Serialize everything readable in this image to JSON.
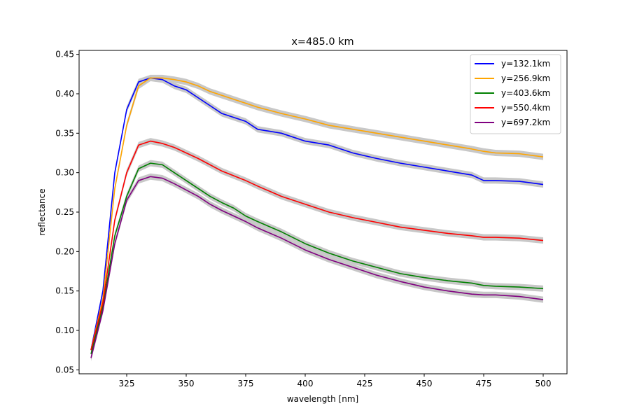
{
  "chart_data": {
    "type": "line",
    "title": "x=485.0 km",
    "xlabel": "wavelength [nm]",
    "ylabel": "reflectance",
    "xlim": [
      305,
      510
    ],
    "ylim": [
      0.045,
      0.455
    ],
    "xticks": [
      325,
      350,
      375,
      400,
      425,
      450,
      475,
      500
    ],
    "xtick_labels": [
      "325",
      "350",
      "375",
      "400",
      "425",
      "450",
      "475",
      "500"
    ],
    "yticks": [
      0.05,
      0.1,
      0.15,
      0.2,
      0.25,
      0.3,
      0.35,
      0.4,
      0.45
    ],
    "ytick_labels": [
      "0.05",
      "0.10",
      "0.15",
      "0.20",
      "0.25",
      "0.30",
      "0.35",
      "0.40",
      "0.45"
    ],
    "grid": false,
    "legend_position": "top-right",
    "uncertainty_band_color": "#c8c8c8",
    "series": [
      {
        "name": "y=132.1km",
        "color": "#0000ff",
        "x": [
          310,
          315,
          320,
          325,
          330,
          335,
          340,
          345,
          350,
          355,
          360,
          365,
          370,
          375,
          380,
          390,
          400,
          410,
          420,
          430,
          440,
          450,
          460,
          470,
          475,
          480,
          490,
          500
        ],
        "y": [
          0.075,
          0.15,
          0.3,
          0.38,
          0.415,
          0.42,
          0.418,
          0.41,
          0.405,
          0.395,
          0.385,
          0.375,
          0.37,
          0.365,
          0.355,
          0.35,
          0.34,
          0.335,
          0.325,
          0.318,
          0.312,
          0.307,
          0.302,
          0.297,
          0.29,
          0.29,
          0.289,
          0.285
        ]
      },
      {
        "name": "y=256.9km",
        "color": "#ffa500",
        "x": [
          310,
          315,
          320,
          325,
          330,
          335,
          340,
          345,
          350,
          355,
          360,
          365,
          370,
          375,
          380,
          390,
          400,
          410,
          420,
          430,
          440,
          450,
          460,
          470,
          475,
          480,
          490,
          500
        ],
        "y": [
          0.075,
          0.14,
          0.28,
          0.36,
          0.41,
          0.42,
          0.42,
          0.418,
          0.415,
          0.41,
          0.403,
          0.398,
          0.393,
          0.388,
          0.383,
          0.375,
          0.368,
          0.36,
          0.355,
          0.35,
          0.345,
          0.34,
          0.335,
          0.33,
          0.327,
          0.325,
          0.324,
          0.32
        ]
      },
      {
        "name": "y=403.6km",
        "color": "#008000",
        "x": [
          310,
          315,
          320,
          325,
          330,
          335,
          340,
          345,
          350,
          355,
          360,
          365,
          370,
          375,
          380,
          390,
          400,
          410,
          420,
          430,
          440,
          450,
          460,
          470,
          475,
          480,
          490,
          500
        ],
        "y": [
          0.07,
          0.13,
          0.22,
          0.27,
          0.305,
          0.312,
          0.31,
          0.3,
          0.29,
          0.28,
          0.27,
          0.262,
          0.255,
          0.245,
          0.238,
          0.225,
          0.21,
          0.198,
          0.188,
          0.18,
          0.172,
          0.167,
          0.163,
          0.16,
          0.157,
          0.156,
          0.155,
          0.153
        ]
      },
      {
        "name": "y=550.4km",
        "color": "#ff0000",
        "x": [
          310,
          315,
          320,
          325,
          330,
          335,
          340,
          345,
          350,
          355,
          360,
          365,
          370,
          375,
          380,
          390,
          400,
          410,
          420,
          430,
          440,
          450,
          460,
          470,
          475,
          480,
          490,
          500
        ],
        "y": [
          0.075,
          0.135,
          0.24,
          0.3,
          0.335,
          0.34,
          0.337,
          0.332,
          0.325,
          0.318,
          0.31,
          0.302,
          0.296,
          0.29,
          0.283,
          0.27,
          0.26,
          0.25,
          0.243,
          0.237,
          0.231,
          0.227,
          0.223,
          0.22,
          0.218,
          0.218,
          0.217,
          0.214
        ]
      },
      {
        "name": "y=697.2km",
        "color": "#800080",
        "x": [
          310,
          315,
          320,
          325,
          330,
          335,
          340,
          345,
          350,
          355,
          360,
          365,
          370,
          375,
          380,
          390,
          400,
          410,
          420,
          430,
          440,
          450,
          460,
          470,
          475,
          480,
          490,
          500
        ],
        "y": [
          0.065,
          0.125,
          0.21,
          0.265,
          0.29,
          0.295,
          0.293,
          0.286,
          0.278,
          0.27,
          0.26,
          0.252,
          0.245,
          0.238,
          0.23,
          0.217,
          0.202,
          0.19,
          0.18,
          0.17,
          0.162,
          0.155,
          0.15,
          0.146,
          0.145,
          0.145,
          0.143,
          0.139
        ]
      }
    ]
  }
}
